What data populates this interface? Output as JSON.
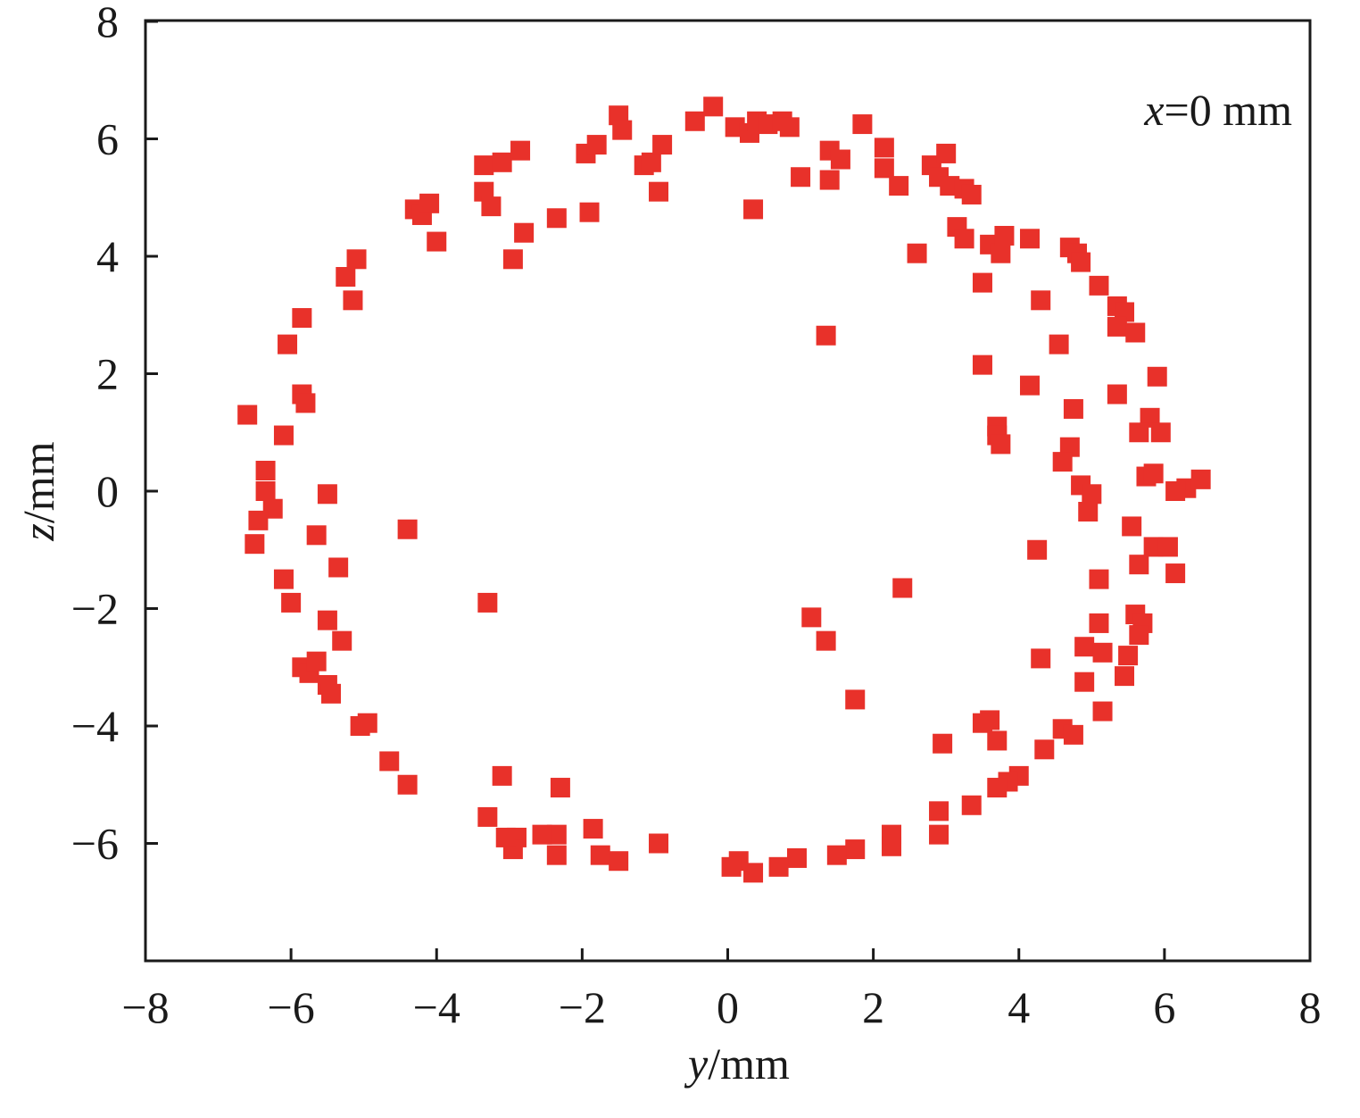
{
  "chart_data": {
    "type": "scatter",
    "title": "",
    "annotation": {
      "var": "x",
      "rest": "=0 mm"
    },
    "xlabel": {
      "var": "y",
      "unit": "/mm"
    },
    "ylabel": {
      "var": "z",
      "unit": "/mm"
    },
    "xlim": [
      -8,
      8
    ],
    "ylim": [
      -8,
      8
    ],
    "xticks": [
      -8,
      -6,
      -4,
      -2,
      0,
      2,
      4,
      6,
      8
    ],
    "yticks": [
      8,
      6,
      4,
      2,
      0,
      -2,
      -4,
      -6
    ],
    "xtick_labels": [
      "−8",
      "−6",
      "−4",
      "−2",
      "0",
      "2",
      "4",
      "6",
      "8"
    ],
    "ytick_labels": [
      "8",
      "6",
      "4",
      "2",
      "0",
      "−2",
      "−4",
      "−6"
    ],
    "grid": false,
    "marker": "square",
    "color": "#e8312a",
    "series": [
      {
        "points": [
          [
            -6.6,
            1.3
          ],
          [
            -6.35,
            0.35
          ],
          [
            -6.35,
            0.0
          ],
          [
            -6.25,
            -0.3
          ],
          [
            -6.45,
            -0.5
          ],
          [
            -6.5,
            -0.9
          ],
          [
            -6.1,
            0.95
          ],
          [
            -6.05,
            2.5
          ],
          [
            -5.85,
            2.95
          ],
          [
            -5.85,
            1.65
          ],
          [
            -5.8,
            1.5
          ],
          [
            -5.5,
            -0.05
          ],
          [
            -5.65,
            -0.75
          ],
          [
            -5.35,
            -1.3
          ],
          [
            -6.1,
            -1.5
          ],
          [
            -6.0,
            -1.9
          ],
          [
            -5.5,
            -2.2
          ],
          [
            -5.3,
            -2.55
          ],
          [
            -5.85,
            -3.0
          ],
          [
            -5.75,
            -3.1
          ],
          [
            -5.65,
            -2.9
          ],
          [
            -5.5,
            -3.3
          ],
          [
            -5.45,
            -3.45
          ],
          [
            -5.05,
            -4.0
          ],
          [
            -4.95,
            -3.95
          ],
          [
            -4.65,
            -4.6
          ],
          [
            -4.4,
            -5.0
          ],
          [
            -5.25,
            3.65
          ],
          [
            -5.1,
            3.95
          ],
          [
            -5.15,
            3.25
          ],
          [
            -4.3,
            4.8
          ],
          [
            -4.2,
            4.7
          ],
          [
            -4.1,
            4.9
          ],
          [
            -4.0,
            4.25
          ],
          [
            -4.4,
            -0.65
          ],
          [
            -3.35,
            5.55
          ],
          [
            -3.1,
            5.6
          ],
          [
            -2.85,
            5.8
          ],
          [
            -3.35,
            5.1
          ],
          [
            -3.25,
            4.85
          ],
          [
            -2.95,
            3.95
          ],
          [
            -2.8,
            4.4
          ],
          [
            -2.35,
            4.65
          ],
          [
            -1.95,
            5.75
          ],
          [
            -1.8,
            5.9
          ],
          [
            -1.9,
            4.75
          ],
          [
            -1.5,
            6.4
          ],
          [
            -1.45,
            6.15
          ],
          [
            -1.15,
            5.55
          ],
          [
            -1.05,
            5.6
          ],
          [
            -0.95,
            5.1
          ],
          [
            -0.9,
            5.9
          ],
          [
            -0.45,
            6.3
          ],
          [
            -0.2,
            6.55
          ],
          [
            0.1,
            6.2
          ],
          [
            0.3,
            6.1
          ],
          [
            0.4,
            6.3
          ],
          [
            0.55,
            6.25
          ],
          [
            0.75,
            6.3
          ],
          [
            0.85,
            6.2
          ],
          [
            1.0,
            5.35
          ],
          [
            1.4,
            5.8
          ],
          [
            1.55,
            5.65
          ],
          [
            1.4,
            5.3
          ],
          [
            0.35,
            4.8
          ],
          [
            1.35,
            2.65
          ],
          [
            1.85,
            6.25
          ],
          [
            2.15,
            5.85
          ],
          [
            2.15,
            5.5
          ],
          [
            2.35,
            5.2
          ],
          [
            2.6,
            4.05
          ],
          [
            2.8,
            5.55
          ],
          [
            2.9,
            5.35
          ],
          [
            3.0,
            5.75
          ],
          [
            3.05,
            5.2
          ],
          [
            3.25,
            5.15
          ],
          [
            3.35,
            5.05
          ],
          [
            3.15,
            4.5
          ],
          [
            3.25,
            4.3
          ],
          [
            3.6,
            4.2
          ],
          [
            3.75,
            4.05
          ],
          [
            3.8,
            4.35
          ],
          [
            4.15,
            4.3
          ],
          [
            3.5,
            3.55
          ],
          [
            4.3,
            3.25
          ],
          [
            4.55,
            2.5
          ],
          [
            3.5,
            2.15
          ],
          [
            4.15,
            1.8
          ],
          [
            3.7,
            1.1
          ],
          [
            3.7,
            0.95
          ],
          [
            3.75,
            0.8
          ],
          [
            4.7,
            4.15
          ],
          [
            4.8,
            4.05
          ],
          [
            4.85,
            3.9
          ],
          [
            5.1,
            3.5
          ],
          [
            5.35,
            3.15
          ],
          [
            5.45,
            3.05
          ],
          [
            5.35,
            2.8
          ],
          [
            5.6,
            2.7
          ],
          [
            4.75,
            1.4
          ],
          [
            5.35,
            1.65
          ],
          [
            5.9,
            1.95
          ],
          [
            5.8,
            1.25
          ],
          [
            5.65,
            1.0
          ],
          [
            5.95,
            1.0
          ],
          [
            4.7,
            0.75
          ],
          [
            4.6,
            0.5
          ],
          [
            4.85,
            0.1
          ],
          [
            5.0,
            -0.05
          ],
          [
            4.95,
            -0.35
          ],
          [
            5.75,
            0.25
          ],
          [
            5.85,
            0.3
          ],
          [
            6.3,
            0.05
          ],
          [
            6.5,
            0.2
          ],
          [
            6.15,
            0.0
          ],
          [
            5.55,
            -0.6
          ],
          [
            5.85,
            -0.95
          ],
          [
            6.05,
            -0.95
          ],
          [
            5.65,
            -1.25
          ],
          [
            6.15,
            -1.4
          ],
          [
            5.6,
            -2.1
          ],
          [
            5.7,
            -2.25
          ],
          [
            5.65,
            -2.45
          ],
          [
            5.1,
            -1.5
          ],
          [
            4.25,
            -1.0
          ],
          [
            5.1,
            -2.25
          ],
          [
            4.9,
            -2.65
          ],
          [
            5.15,
            -2.75
          ],
          [
            5.5,
            -2.8
          ],
          [
            5.45,
            -3.15
          ],
          [
            4.9,
            -3.25
          ],
          [
            5.15,
            -3.75
          ],
          [
            4.3,
            -2.85
          ],
          [
            4.6,
            -4.05
          ],
          [
            4.75,
            -4.15
          ],
          [
            4.35,
            -4.4
          ],
          [
            4.0,
            -4.85
          ],
          [
            3.85,
            -4.95
          ],
          [
            3.7,
            -5.05
          ],
          [
            3.6,
            -3.9
          ],
          [
            3.5,
            -3.95
          ],
          [
            3.7,
            -4.25
          ],
          [
            2.95,
            -4.3
          ],
          [
            3.35,
            -5.35
          ],
          [
            2.9,
            -5.45
          ],
          [
            2.9,
            -5.85
          ],
          [
            2.25,
            -5.85
          ],
          [
            2.25,
            -6.05
          ],
          [
            1.75,
            -6.1
          ],
          [
            1.5,
            -6.2
          ],
          [
            0.95,
            -6.25
          ],
          [
            0.7,
            -6.4
          ],
          [
            0.35,
            -6.5
          ],
          [
            0.15,
            -6.3
          ],
          [
            0.05,
            -6.4
          ],
          [
            1.15,
            -2.15
          ],
          [
            1.35,
            -2.55
          ],
          [
            1.75,
            -3.55
          ],
          [
            2.4,
            -1.65
          ],
          [
            -0.95,
            -6.0
          ],
          [
            -1.5,
            -6.3
          ],
          [
            -1.75,
            -6.2
          ],
          [
            -1.85,
            -5.75
          ],
          [
            -2.35,
            -5.85
          ],
          [
            -2.35,
            -6.2
          ],
          [
            -2.55,
            -5.85
          ],
          [
            -2.9,
            -5.9
          ],
          [
            -2.95,
            -6.1
          ],
          [
            -3.05,
            -5.9
          ],
          [
            -3.3,
            -5.55
          ],
          [
            -3.1,
            -4.85
          ],
          [
            -2.3,
            -5.05
          ],
          [
            -3.3,
            -1.9
          ]
        ]
      }
    ]
  }
}
